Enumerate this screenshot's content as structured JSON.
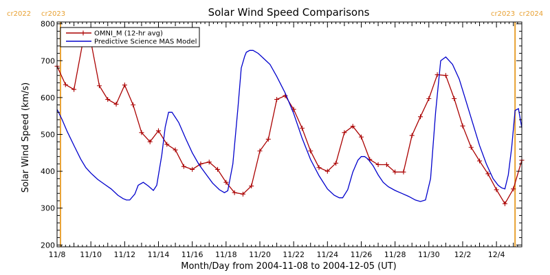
{
  "chart_data": {
    "type": "line",
    "title": "Solar Wind Speed Comparisons",
    "xlabel": "Month/Day from 2004-11-08 to 2004-12-05 (UT)",
    "ylabel": "Solar Wind Speed (km/s)",
    "xlim_days": [
      0,
      27.5
    ],
    "ylim": [
      195,
      805
    ],
    "y_ticks": [
      200,
      300,
      400,
      500,
      600,
      700,
      800
    ],
    "x_ticks": [
      {
        "day": 0,
        "label": "11/8"
      },
      {
        "day": 2,
        "label": "11/10"
      },
      {
        "day": 4,
        "label": "11/12"
      },
      {
        "day": 6,
        "label": "11/14"
      },
      {
        "day": 8,
        "label": "11/16"
      },
      {
        "day": 10,
        "label": "11/18"
      },
      {
        "day": 12,
        "label": "11/20"
      },
      {
        "day": 14,
        "label": "11/22"
      },
      {
        "day": 16,
        "label": "11/24"
      },
      {
        "day": 18,
        "label": "11/26"
      },
      {
        "day": 20,
        "label": "11/28"
      },
      {
        "day": 22,
        "label": "11/30"
      },
      {
        "day": 24,
        "label": "12/2"
      },
      {
        "day": 26,
        "label": "12/4"
      }
    ],
    "carrington_labels": [
      {
        "text": "cr2022",
        "position": "top-left"
      },
      {
        "text": "cr2023",
        "position": "top-left"
      },
      {
        "text": "cr2023",
        "position": "top-right"
      },
      {
        "text": "cr2024",
        "position": "top-right"
      }
    ],
    "carrington_lines_days": [
      0.2,
      27.1
    ],
    "legend_position": "top-left",
    "colors": {
      "omni": "#aa0000",
      "mas": "#0000cc",
      "carrington": "#e8a030",
      "axis": "#000000"
    },
    "series": [
      {
        "name": "OMNI_M (12-hr avg)",
        "color": "#aa0000",
        "markers": "plus",
        "x": [
          0.0,
          0.5,
          1.0,
          1.5,
          2.0,
          2.5,
          3.0,
          3.5,
          4.0,
          4.5,
          5.0,
          5.5,
          6.0,
          6.5,
          7.0,
          7.5,
          8.0,
          8.5,
          9.0,
          9.5,
          10.0,
          10.5,
          11.0,
          11.5,
          12.0,
          12.5,
          13.0,
          13.5,
          14.0,
          14.5,
          15.0,
          15.5,
          16.0,
          16.5,
          17.0,
          17.5,
          18.0,
          18.5,
          19.0,
          19.5,
          20.0,
          20.5,
          21.0,
          21.5,
          22.0,
          22.5,
          23.0,
          23.5,
          24.0,
          24.5,
          25.0,
          25.5,
          26.0,
          26.5,
          27.0,
          27.5
        ],
        "y": [
          685,
          635,
          622,
          745,
          752,
          632,
          595,
          582,
          634,
          580,
          505,
          480,
          510,
          473,
          458,
          413,
          405,
          420,
          425,
          405,
          370,
          342,
          338,
          360,
          455,
          487,
          595,
          605,
          568,
          517,
          455,
          410,
          400,
          422,
          505,
          522,
          493,
          432,
          418,
          418,
          398,
          398,
          497,
          548,
          597,
          662,
          660,
          597,
          523,
          465,
          428,
          393,
          350,
          312,
          352,
          430
        ]
      },
      {
        "name": "Predictive Science MAS Model",
        "color": "#0000cc",
        "markers": "none",
        "x": [
          0.0,
          0.3,
          0.6,
          1.0,
          1.4,
          1.7,
          2.0,
          2.4,
          2.8,
          3.2,
          3.6,
          3.9,
          4.1,
          4.3,
          4.6,
          4.8,
          5.1,
          5.4,
          5.7,
          5.9,
          6.2,
          6.4,
          6.6,
          6.8,
          7.2,
          7.6,
          8.0,
          8.4,
          8.8,
          9.2,
          9.6,
          9.9,
          10.1,
          10.4,
          10.7,
          10.9,
          11.1,
          11.2,
          11.4,
          11.6,
          11.9,
          12.2,
          12.6,
          13.0,
          13.5,
          14.0,
          14.5,
          15.0,
          15.5,
          16.0,
          16.4,
          16.7,
          16.9,
          17.2,
          17.5,
          17.8,
          18.0,
          18.2,
          18.4,
          18.7,
          19.0,
          19.3,
          19.6,
          20.0,
          20.4,
          20.8,
          21.2,
          21.5,
          21.8,
          22.1,
          22.4,
          22.7,
          23.0,
          23.4,
          23.8,
          24.2,
          24.6,
          25.0,
          25.4,
          25.8,
          26.1,
          26.3,
          26.5,
          26.7,
          26.9,
          27.1,
          27.3,
          27.5
        ],
        "y": [
          568,
          540,
          508,
          470,
          433,
          410,
          395,
          378,
          365,
          352,
          335,
          326,
          322,
          322,
          338,
          362,
          370,
          360,
          348,
          362,
          445,
          520,
          560,
          560,
          532,
          490,
          450,
          418,
          393,
          368,
          350,
          342,
          347,
          420,
          570,
          680,
          712,
          723,
          728,
          728,
          720,
          707,
          690,
          657,
          612,
          557,
          490,
          432,
          388,
          352,
          335,
          328,
          328,
          350,
          398,
          430,
          440,
          440,
          433,
          415,
          390,
          370,
          358,
          348,
          340,
          332,
          322,
          318,
          322,
          380,
          560,
          700,
          710,
          690,
          650,
          590,
          530,
          470,
          420,
          380,
          362,
          355,
          352,
          390,
          465,
          565,
          570,
          518
        ]
      }
    ]
  }
}
